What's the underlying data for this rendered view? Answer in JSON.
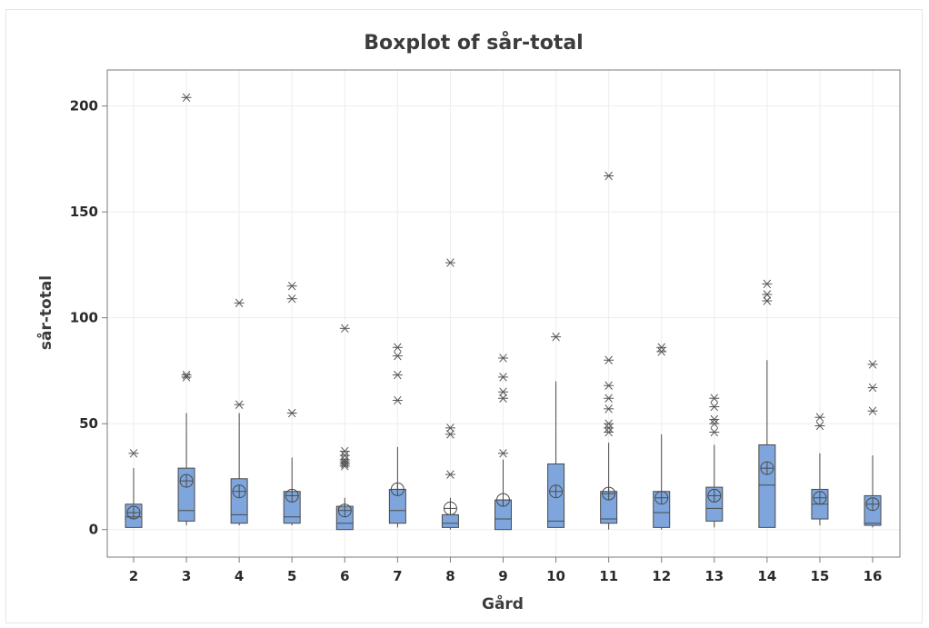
{
  "chart_data": {
    "type": "boxplot",
    "title": "Boxplot of sår-total",
    "xlabel": "Gård",
    "ylabel": "sår-total",
    "ylim": [
      -13,
      217
    ],
    "yticks": [
      0,
      50,
      100,
      150,
      200
    ],
    "grid": true,
    "box_color": "#7ea6dc",
    "categories": [
      "2",
      "3",
      "4",
      "5",
      "6",
      "7",
      "8",
      "9",
      "10",
      "11",
      "12",
      "13",
      "14",
      "15",
      "16"
    ],
    "boxes": [
      {
        "category": "2",
        "min": 1,
        "q1": 1,
        "median": 6,
        "q3": 12,
        "max": 29,
        "mean": 8,
        "outliers": [
          36
        ]
      },
      {
        "category": "3",
        "min": 2,
        "q1": 4,
        "median": 9,
        "q3": 29,
        "max": 55,
        "mean": 23,
        "outliers": [
          72,
          73,
          204
        ]
      },
      {
        "category": "4",
        "min": 2,
        "q1": 3,
        "median": 7,
        "q3": 24,
        "max": 55,
        "mean": 18,
        "outliers": [
          59,
          107
        ]
      },
      {
        "category": "5",
        "min": 2,
        "q1": 3,
        "median": 6,
        "q3": 18,
        "max": 34,
        "mean": 16,
        "outliers": [
          55,
          109,
          115
        ]
      },
      {
        "category": "6",
        "min": 0,
        "q1": 0,
        "median": 3,
        "q3": 11,
        "max": 15,
        "mean": 9,
        "outliers": [
          30,
          31,
          32,
          33,
          35,
          37,
          95
        ]
      },
      {
        "category": "7",
        "min": 1,
        "q1": 3,
        "median": 9,
        "q3": 19,
        "max": 39,
        "mean": 19,
        "outliers": [
          61,
          73,
          82,
          86
        ]
      },
      {
        "category": "8",
        "min": 0,
        "q1": 1,
        "median": 3,
        "q3": 7,
        "max": 15,
        "mean": 10,
        "outliers": [
          26,
          45,
          48,
          126
        ]
      },
      {
        "category": "9",
        "min": 0,
        "q1": 0,
        "median": 5,
        "q3": 14,
        "max": 33,
        "mean": 14,
        "outliers": [
          36,
          62,
          65,
          72,
          81
        ]
      },
      {
        "category": "10",
        "min": 1,
        "q1": 1,
        "median": 4,
        "q3": 31,
        "max": 70,
        "mean": 18,
        "outliers": [
          91
        ]
      },
      {
        "category": "11",
        "min": 0,
        "q1": 3,
        "median": 5,
        "q3": 18,
        "max": 41,
        "mean": 17,
        "outliers": [
          46,
          48,
          50,
          57,
          62,
          68,
          80,
          167
        ]
      },
      {
        "category": "12",
        "min": 0,
        "q1": 1,
        "median": 8,
        "q3": 18,
        "max": 45,
        "mean": 15,
        "outliers": [
          84,
          86
        ]
      },
      {
        "category": "13",
        "min": 1,
        "q1": 4,
        "median": 10,
        "q3": 20,
        "max": 40,
        "mean": 16,
        "outliers": [
          46,
          50,
          52,
          58,
          62
        ]
      },
      {
        "category": "14",
        "min": 1,
        "q1": 1,
        "median": 21,
        "q3": 40,
        "max": 80,
        "mean": 29,
        "outliers": [
          108,
          111,
          116
        ]
      },
      {
        "category": "15",
        "min": 2,
        "q1": 5,
        "median": 12,
        "q3": 19,
        "max": 36,
        "mean": 15,
        "outliers": [
          49,
          53
        ]
      },
      {
        "category": "16",
        "min": 1,
        "q1": 2,
        "median": 3,
        "q3": 16,
        "max": 35,
        "mean": 12,
        "outliers": [
          56,
          67,
          78
        ]
      }
    ]
  }
}
